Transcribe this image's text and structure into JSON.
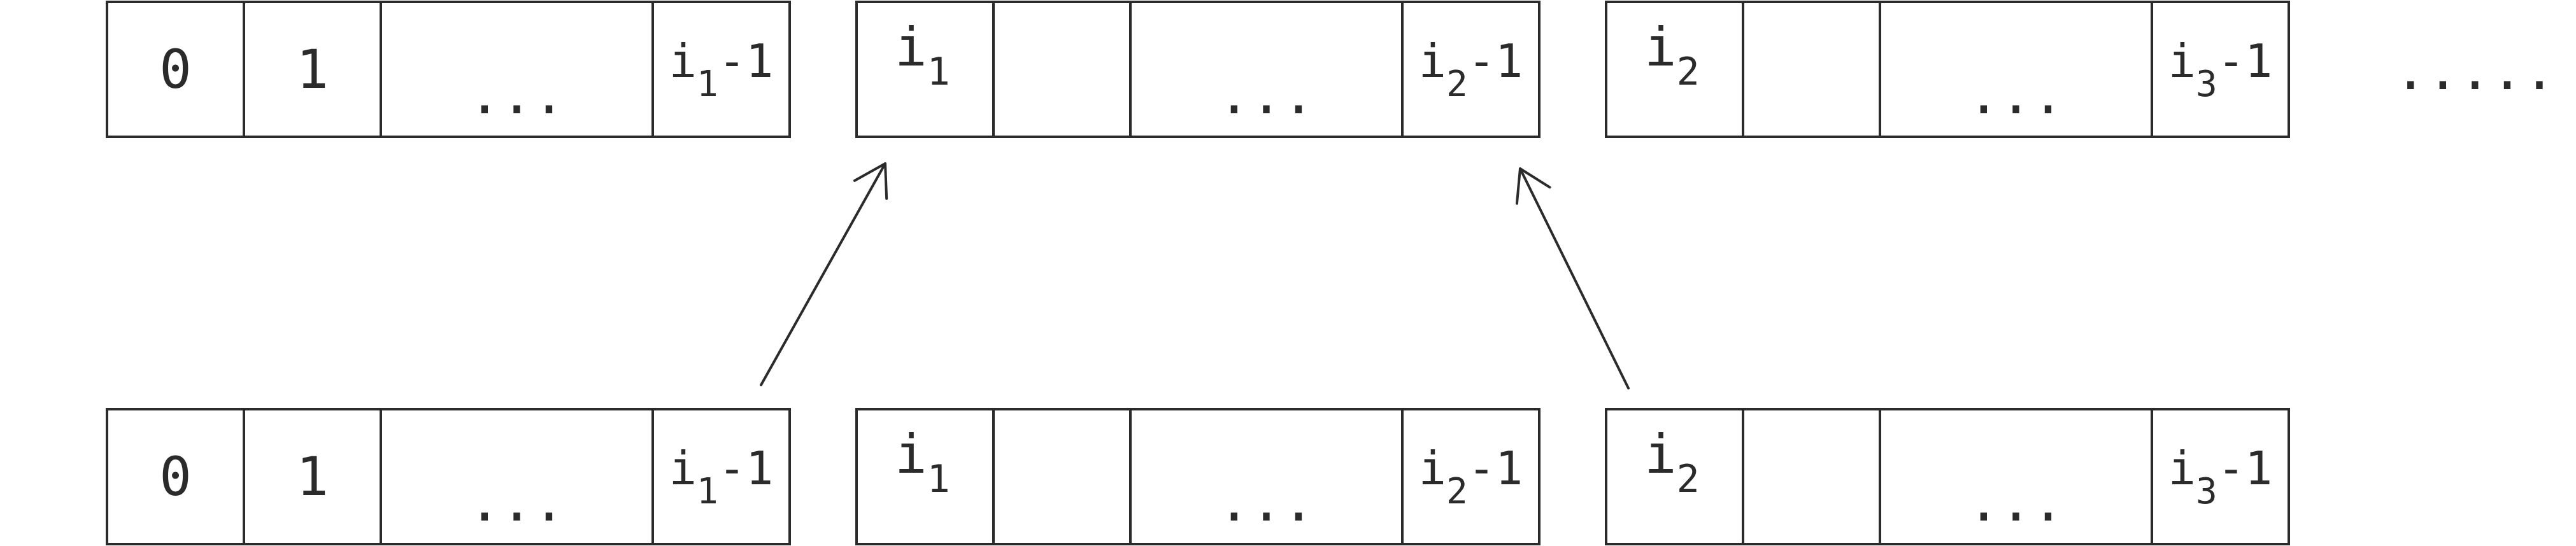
{
  "colors": {
    "stroke": "#2b2b2b",
    "background": "#ffffff"
  },
  "top_row": {
    "blocks": [
      {
        "cells": [
          {
            "main": "0"
          },
          {
            "main": "1"
          },
          {
            "main": "..."
          },
          {
            "main": "i",
            "sub": "1",
            "suffix": "-1"
          }
        ]
      },
      {
        "cells": [
          {
            "main": "i",
            "sub": "1"
          },
          {
            "main": ""
          },
          {
            "main": "..."
          },
          {
            "main": "i",
            "sub": "2",
            "suffix": "-1"
          }
        ]
      },
      {
        "cells": [
          {
            "main": "i",
            "sub": "2"
          },
          {
            "main": ""
          },
          {
            "main": "..."
          },
          {
            "main": "i",
            "sub": "3",
            "suffix": "-1"
          }
        ]
      }
    ],
    "trailing": "....."
  },
  "bottom_row": {
    "blocks": [
      {
        "cells": [
          {
            "main": "0"
          },
          {
            "main": "1"
          },
          {
            "main": "..."
          },
          {
            "main": "i",
            "sub": "1",
            "suffix": "-1"
          }
        ]
      },
      {
        "cells": [
          {
            "main": "i",
            "sub": "1"
          },
          {
            "main": ""
          },
          {
            "main": "..."
          },
          {
            "main": "i",
            "sub": "2",
            "suffix": "-1"
          }
        ]
      },
      {
        "cells": [
          {
            "main": "i",
            "sub": "2"
          },
          {
            "main": ""
          },
          {
            "main": "..."
          },
          {
            "main": "i",
            "sub": "3",
            "suffix": "-1"
          }
        ]
      }
    ]
  },
  "arrows": [
    {
      "from": "bottom_row.block_1.last_cell",
      "to": "top_row.block_2.first_cell"
    },
    {
      "from": "bottom_row.block_3.first_cell",
      "to": "top_row.block_2.last_cell"
    }
  ]
}
